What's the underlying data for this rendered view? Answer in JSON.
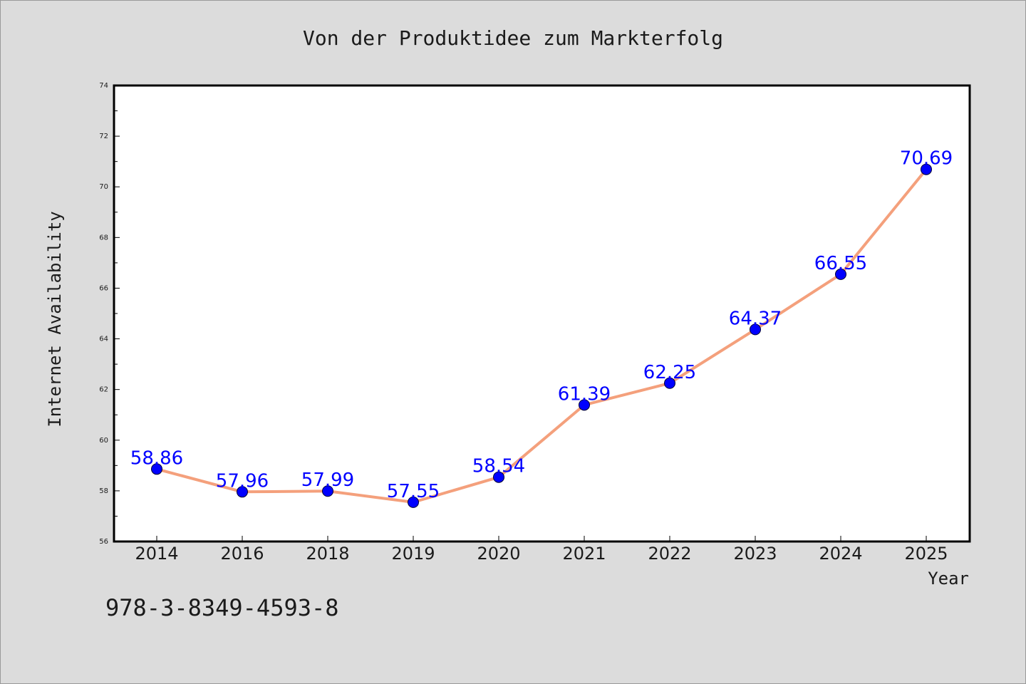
{
  "chart_data": {
    "type": "line",
    "title": "Von der Produktidee zum Markterfolg",
    "xlabel": "Year",
    "ylabel": "Internet Availability",
    "categories": [
      "2014",
      "2016",
      "2018",
      "2019",
      "2020",
      "2021",
      "2022",
      "2023",
      "2024",
      "2025"
    ],
    "series": [
      {
        "values": [
          58.86,
          57.96,
          57.99,
          57.55,
          58.54,
          61.39,
          62.25,
          64.37,
          66.55,
          70.69
        ],
        "data_labels": [
          "58.86",
          "57.96",
          "57.99",
          "57.55",
          "58.54",
          "61.39",
          "62.25",
          "64.37",
          "66.55",
          "70.69"
        ],
        "line_color": "#f4a07c",
        "marker_color": "#0000ff"
      }
    ],
    "ylim": [
      56,
      74
    ],
    "yticks": [
      "56",
      "58",
      "60",
      "62",
      "64",
      "66",
      "68",
      "70",
      "72",
      "74"
    ],
    "grid": false,
    "background": "#dcdcdc",
    "plot_background": "#ffffff"
  },
  "footer": {
    "isbn": "978-3-8349-4593-8"
  }
}
